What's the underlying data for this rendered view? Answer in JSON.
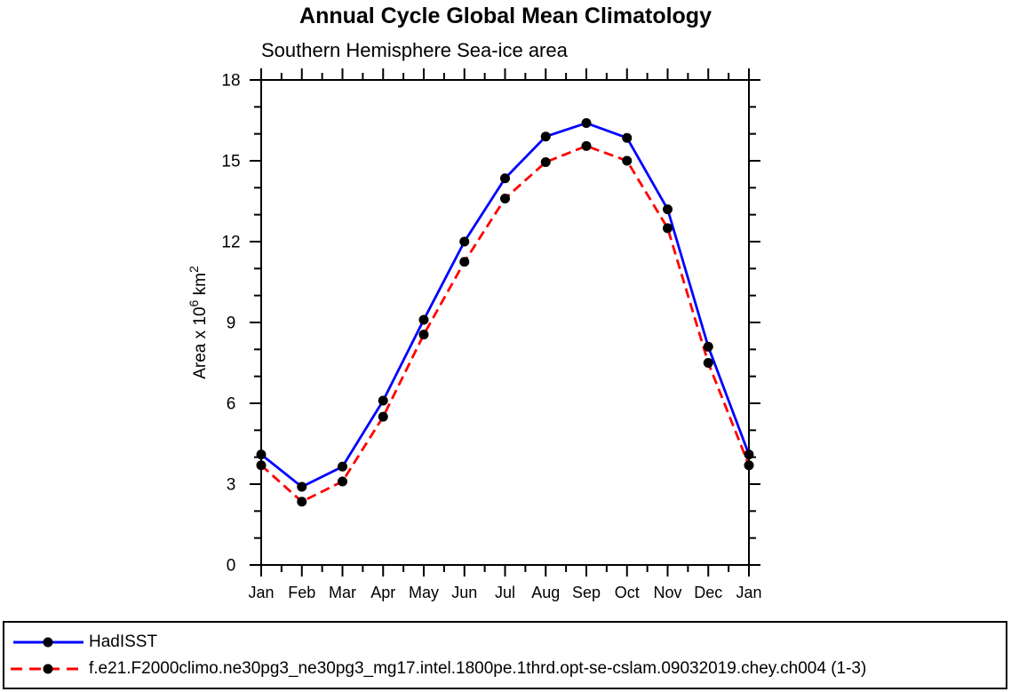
{
  "page": {
    "background": "#ffffff",
    "text_color": "#000000"
  },
  "chart_data": {
    "type": "line",
    "title": "Annual Cycle Global Mean Climatology",
    "subtitle": "Southern Hemisphere Sea-ice area",
    "xlabel": "",
    "ylabel": "Area x 10^6 km^2",
    "ylabel_parts": [
      {
        "text": "Area x 10",
        "sup": false
      },
      {
        "text": "6",
        "sup": true
      },
      {
        "text": " km",
        "sup": false
      },
      {
        "text": "2",
        "sup": true
      }
    ],
    "categories": [
      "Jan",
      "Feb",
      "Mar",
      "Apr",
      "May",
      "Jun",
      "Jul",
      "Aug",
      "Sep",
      "Oct",
      "Nov",
      "Dec",
      "Jan"
    ],
    "ylim": [
      0,
      18
    ],
    "yticks": [
      0,
      3,
      6,
      9,
      12,
      15,
      18
    ],
    "y_minor_step": 1,
    "x_minor": true,
    "grid": false,
    "legend_position": "bottom-left-box",
    "frame_color": "#000000",
    "series": [
      {
        "name": "HadISST",
        "color": "#0000ff",
        "line_style": "solid",
        "marker": "filled-circle",
        "marker_color": "#000000",
        "values": [
          4.1,
          2.9,
          3.65,
          6.1,
          9.1,
          12.0,
          14.35,
          15.9,
          16.4,
          15.85,
          13.2,
          8.1,
          4.1
        ]
      },
      {
        "name": "f.e21.F2000climo.ne30pg3_ne30pg3_mg17.intel.1800pe.1thrd.opt-se-cslam.09032019.chey.ch004 (1-3)",
        "color": "#ff0000",
        "line_style": "dashed",
        "marker": "filled-circle",
        "marker_color": "#000000",
        "values": [
          3.7,
          2.35,
          3.1,
          5.5,
          8.55,
          11.25,
          13.6,
          14.95,
          15.55,
          15.0,
          12.5,
          7.5,
          3.7
        ]
      }
    ]
  }
}
